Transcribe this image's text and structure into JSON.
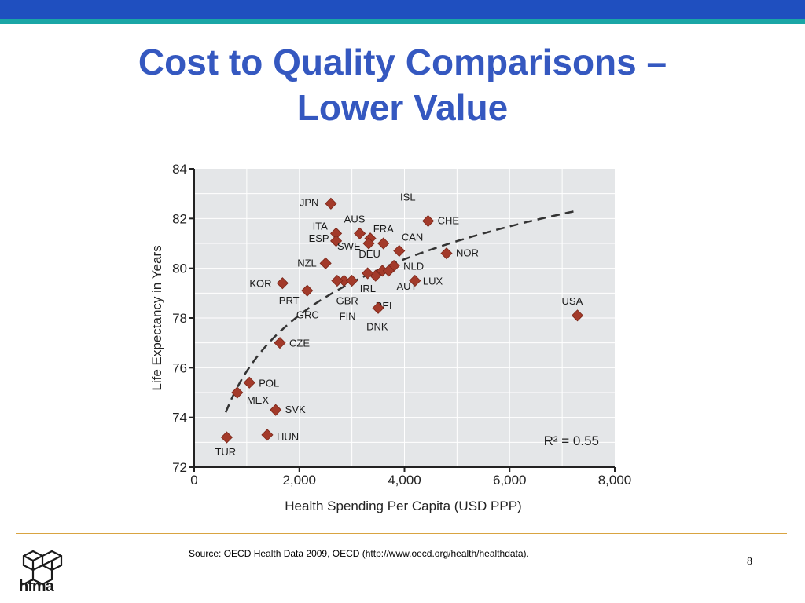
{
  "slide": {
    "title_line1": "Cost to Quality Comparisons –",
    "title_line2": "Lower Value",
    "source": "Source: OECD Health Data 2009, OECD (http://www.oecd.org/health/healthdata).",
    "page_number": "8",
    "logo_text": "hfma",
    "colors": {
      "title": "#3558c0",
      "topbar": "#1f4fbf",
      "accent": "#1aa6a6",
      "marker": "#a33a2a"
    }
  },
  "chart_data": {
    "type": "scatter",
    "title": "",
    "xlabel": "Health Spending Per Capita (USD PPP)",
    "ylabel": "Life Expectancy in Years",
    "xlim": [
      0,
      8000
    ],
    "ylim": [
      72,
      84
    ],
    "xticks": [
      0,
      2000,
      4000,
      6000,
      8000
    ],
    "xtick_labels": [
      "0",
      "2,000",
      "4,000",
      "6,000",
      "8,000"
    ],
    "yticks": [
      72,
      74,
      76,
      78,
      80,
      82,
      84
    ],
    "annotation": "R² = 0.55",
    "trendline": "logarithmic",
    "points": [
      {
        "label": "JPN",
        "x": 2600,
        "y": 82.6
      },
      {
        "label": "ISL",
        "x": 3350,
        "y": 81.2
      },
      {
        "label": "AUS",
        "x": 3150,
        "y": 81.4
      },
      {
        "label": "CHE",
        "x": 4450,
        "y": 81.9
      },
      {
        "label": "ITA",
        "x": 2700,
        "y": 81.4
      },
      {
        "label": "FRA",
        "x": 3600,
        "y": 81.0
      },
      {
        "label": "CAN",
        "x": 3900,
        "y": 80.7
      },
      {
        "label": "ESP",
        "x": 2700,
        "y": 81.1
      },
      {
        "label": "SWE",
        "x": 3320,
        "y": 81.0
      },
      {
        "label": "NOR",
        "x": 4800,
        "y": 80.6
      },
      {
        "label": "NZL",
        "x": 2500,
        "y": 80.2
      },
      {
        "label": "DEU",
        "x": 3580,
        "y": 79.9
      },
      {
        "label": "NLD",
        "x": 3800,
        "y": 80.1
      },
      {
        "label": "KOR",
        "x": 1680,
        "y": 79.4
      },
      {
        "label": "LUX",
        "x": 4200,
        "y": 79.5
      },
      {
        "label": "PRT",
        "x": 2150,
        "y": 79.1
      },
      {
        "label": "IRL",
        "x": 3450,
        "y": 79.7
      },
      {
        "label": "AUT",
        "x": 3700,
        "y": 79.9
      },
      {
        "label": "GBR",
        "x": 2850,
        "y": 79.5
      },
      {
        "label": "GRC",
        "x": 2720,
        "y": 79.5
      },
      {
        "label": "FIN",
        "x": 3000,
        "y": 79.5
      },
      {
        "label": "BEL",
        "x": 3300,
        "y": 79.8
      },
      {
        "label": "DNK",
        "x": 3500,
        "y": 78.4
      },
      {
        "label": "USA",
        "x": 7290,
        "y": 78.1
      },
      {
        "label": "CZE",
        "x": 1630,
        "y": 77.0
      },
      {
        "label": "POL",
        "x": 1050,
        "y": 75.4
      },
      {
        "label": "MEX",
        "x": 820,
        "y": 75.0
      },
      {
        "label": "SVK",
        "x": 1550,
        "y": 74.3
      },
      {
        "label": "HUN",
        "x": 1390,
        "y": 73.3
      },
      {
        "label": "TUR",
        "x": 620,
        "y": 73.2
      }
    ]
  }
}
